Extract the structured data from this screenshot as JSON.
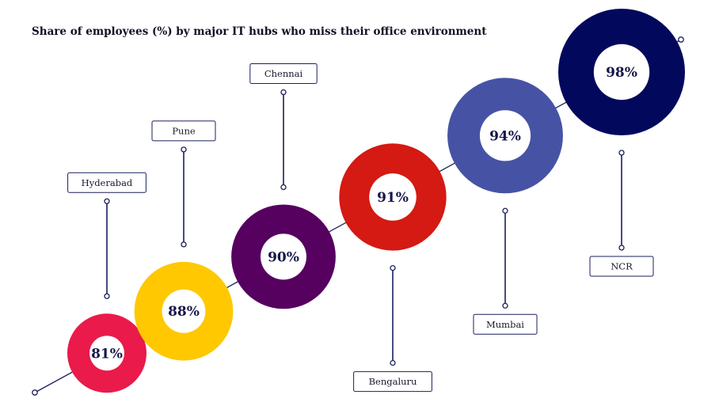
{
  "title": "Share of employees (%) by major IT hubs who miss their office environment",
  "chart_data": {
    "type": "bar",
    "title": "Share of employees (%) by major IT hubs who miss their office environment",
    "unit": "%",
    "categories": [
      "Hyderabad",
      "Pune",
      "Chennai",
      "Bengaluru",
      "Mumbai",
      "NCR"
    ],
    "values": [
      81,
      88,
      90,
      91,
      94,
      98
    ],
    "value_labels": [
      "81%",
      "88%",
      "90%",
      "91%",
      "94%",
      "98%"
    ],
    "label_positions": [
      "above",
      "above",
      "above",
      "below",
      "below",
      "below"
    ],
    "colors": [
      "#ea1a4a",
      "#ffc800",
      "#560060",
      "#d41a12",
      "#4653a5",
      "#02085c"
    ]
  },
  "styles": {
    "line_color": "#1b1f5e",
    "label_border": "#1b1f5e",
    "hole_color": "#ffffff"
  }
}
